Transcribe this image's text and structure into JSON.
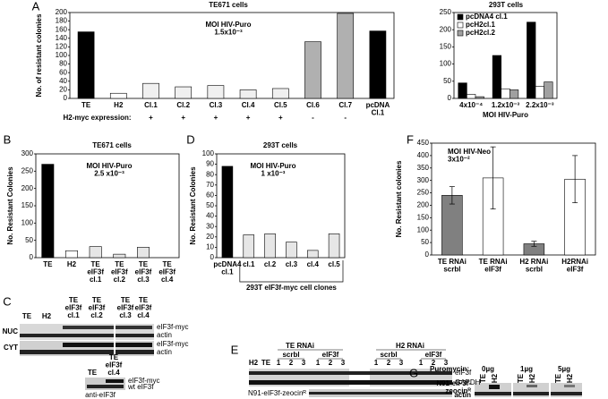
{
  "chart_data": [
    {
      "type": "bar",
      "panel": "A",
      "title": "TE671 cells",
      "annotation": "MOI HIV-Puro\n1.5x10⁻³",
      "ylabel": "No. of resistant colonies",
      "categories": [
        "TE",
        "H2",
        "Cl.1",
        "Cl.2",
        "Cl.3",
        "Cl.4",
        "Cl.5",
        "Cl.6",
        "Cl.7",
        "pcDNA\nCl.1"
      ],
      "values": [
        155,
        12,
        35,
        27,
        30,
        20,
        23,
        132,
        198,
        157
      ],
      "colors": [
        "#000000",
        "#ffffff",
        "#f0f0f0",
        "#f0f0f0",
        "#f0f0f0",
        "#f0f0f0",
        "#f0f0f0",
        "#b0b0b0",
        "#b0b0b0",
        "#000000"
      ],
      "expression_label": "H2-myc expression:",
      "expression": [
        null,
        null,
        "+",
        "+",
        "+",
        "+",
        "+",
        "-",
        "-",
        null
      ],
      "ylim": [
        0,
        200
      ],
      "yticks": [
        0,
        20,
        40,
        60,
        80,
        100,
        120,
        140,
        160,
        180,
        200
      ]
    },
    {
      "type": "bar",
      "title": "293T cells",
      "xlabel": "MOI HIV-Puro",
      "categories": [
        "4x10⁻⁴",
        "1.2x10⁻³",
        "2.2x10⁻³"
      ],
      "series": [
        {
          "name": "pcDNA4 cl.1",
          "color": "#000000",
          "values": [
            45,
            125,
            222
          ]
        },
        {
          "name": "pcH2cl.1",
          "color": "#ffffff",
          "values": [
            12,
            28,
            35
          ]
        },
        {
          "name": "pcH2cl.2",
          "color": "#a0a0a0",
          "values": [
            5,
            25,
            48
          ]
        }
      ],
      "legend": "upper left",
      "ylim": [
        0,
        250
      ],
      "yticks": [
        0,
        50,
        100,
        150,
        200,
        250
      ]
    },
    {
      "type": "bar",
      "panel": "B",
      "title": "TE671 cells",
      "annotation": "MOI HIV-Puro\n2.5 x10⁻³",
      "ylabel": "No. Resistant Colonies",
      "categories": [
        "TE",
        "H2",
        "TE\neIF3f\ncl.1",
        "TE\neIF3f\ncl.2",
        "TE\neIF3f\ncl.3",
        "TE\neIF3f\ncl.4"
      ],
      "values": [
        270,
        20,
        32,
        10,
        30,
        0
      ],
      "colors": [
        "#000000",
        "#ffffff",
        "#e6e6e6",
        "#e6e6e6",
        "#e6e6e6",
        "#e6e6e6"
      ],
      "ylim": [
        0,
        300
      ],
      "yticks": [
        0,
        50,
        100,
        150,
        200,
        250,
        300
      ]
    },
    {
      "type": "bar",
      "panel": "D",
      "title": "293T cells",
      "annotation": "MOI HIV-Puro\n1 x10⁻³",
      "ylabel": "No. Resistant Colonies",
      "categories": [
        "pcDNA4\ncl.1",
        "cl.1",
        "cl.2",
        "cl.3",
        "cl.4",
        "cl.5"
      ],
      "group_label": "293T eIF3f-myc cell clones",
      "values": [
        88,
        22,
        23,
        15,
        7,
        23
      ],
      "colors": [
        "#000000",
        "#e6e6e6",
        "#e6e6e6",
        "#e6e6e6",
        "#e6e6e6",
        "#e6e6e6"
      ],
      "ylim": [
        0,
        100
      ],
      "yticks": [
        0,
        10,
        20,
        30,
        40,
        50,
        60,
        70,
        80,
        90,
        100
      ]
    },
    {
      "type": "bar",
      "panel": "F",
      "annotation": "MOI HIV-Neo\n3x10⁻²",
      "ylabel": "No. Resistant colonies",
      "categories": [
        "TE RNAi\nscrbl",
        "TE RNAi\neIF3f",
        "H2 RNAi\nscrbl",
        "H2RNAi\neIF3f"
      ],
      "values": [
        240,
        310,
        45,
        305
      ],
      "errors": [
        35,
        125,
        10,
        95
      ],
      "colors": [
        "#808080",
        "#ffffff",
        "#808080",
        "#ffffff"
      ],
      "ylim": [
        0,
        450
      ],
      "yticks": [
        0,
        50,
        100,
        150,
        200,
        250,
        300,
        350,
        400,
        450
      ]
    }
  ],
  "blots": {
    "C": {
      "letter": "C",
      "lanes": [
        "TE",
        "H2",
        "TE\neIF3f\ncl.1",
        "TE\neIF3f\ncl.2",
        "TE\neIF3f\ncl.3",
        "TE\neIF3f\ncl.4"
      ],
      "rows": [
        "NUC",
        "CYT"
      ],
      "bands": [
        "eIF3f-myc",
        "actin",
        "eIF3f-myc",
        "actin"
      ],
      "inset_lanes": [
        "TE",
        "TE\neIF3f\ncl.4"
      ],
      "inset_bands": [
        "eIF3f-myc",
        "wt eIF3f"
      ],
      "antibody": "anti-eIF3f"
    },
    "E": {
      "letter": "E",
      "groups": [
        "TE RNAi",
        "H2 RNAi"
      ],
      "subgroups": [
        "scrbl",
        "eIF3f",
        "scrbl",
        "eIF3f"
      ],
      "lanes": [
        "H2",
        "TE",
        "1",
        "2",
        "3",
        "1",
        "2",
        "3",
        "1",
        "2",
        "3",
        "1",
        "2",
        "3"
      ],
      "bands": [
        "eIF3f",
        "GAPDH"
      ],
      "construct": "N91-eIF3f-zeocinᴿ"
    },
    "G": {
      "letter": "G",
      "treatment": "Puromycin:",
      "doses": [
        "0µg",
        "1µg",
        "5µg"
      ],
      "lanes": [
        "TE",
        "H2",
        "TE",
        "H2",
        "TE",
        "H2"
      ],
      "bands": [
        "N91-eIF3f-\nzeocinᴿ",
        "actin"
      ]
    }
  }
}
